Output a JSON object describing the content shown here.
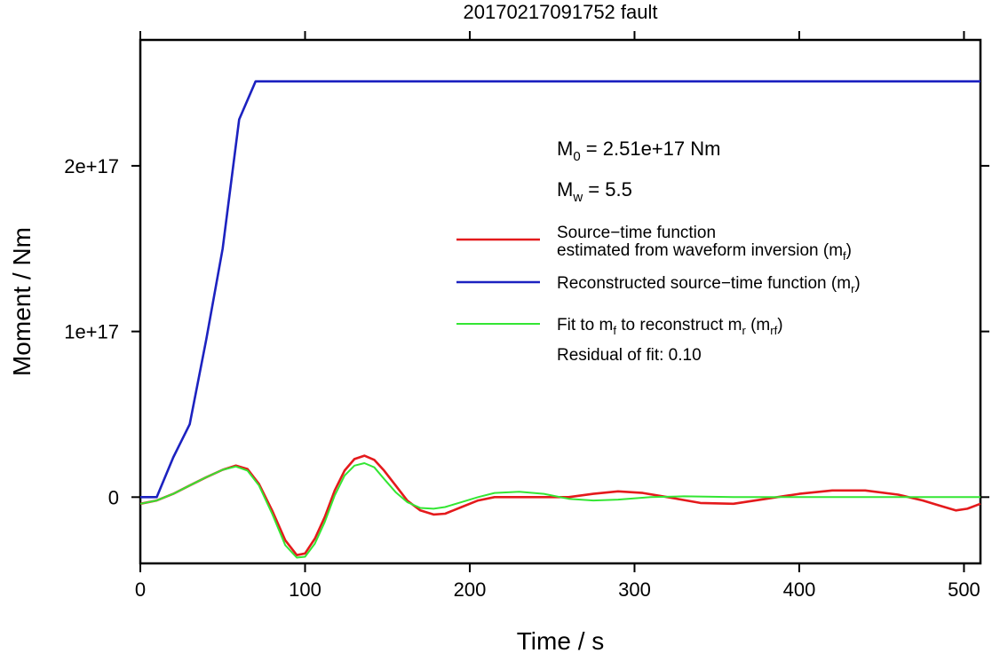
{
  "chart_data": {
    "type": "line",
    "title": "20170217091752 fault",
    "xlabel": "Time / s",
    "ylabel": "Moment / Nm",
    "xlim": [
      0,
      510
    ],
    "ylim": [
      -4e+16,
      2.76e+17
    ],
    "x_ticks": [
      0,
      100,
      200,
      300,
      400,
      500
    ],
    "x_tick_labels": [
      "0",
      "100",
      "200",
      "300",
      "400",
      "500"
    ],
    "y_ticks": [
      0,
      1e+17,
      2e+17
    ],
    "y_tick_labels": [
      "0",
      "1e+17",
      "2e+17"
    ],
    "grid": false,
    "legend_position": "right",
    "annotations": {
      "m0": {
        "pre": "M",
        "sub": "0",
        "post": " = 2.51e+17 Nm"
      },
      "mw": {
        "pre": "M",
        "sub": "w",
        "post": " = 5.5"
      },
      "residual": "Residual of fit: 0.10"
    },
    "legend": [
      {
        "color": "#e41a1c",
        "line1": "Source−time function",
        "line2": {
          "pre": "estimated from waveform inversion (m",
          "sub": "f",
          "post": ")"
        }
      },
      {
        "color": "#1c22c0",
        "line1": {
          "pre": "Reconstructed source−time function (m",
          "sub": "r",
          "post": ")"
        }
      },
      {
        "color": "#33e633",
        "line1": {
          "pre": "Fit to m",
          "sub1": "f",
          "mid": " to reconstruct m",
          "sub2": "r",
          "mid2": " (m",
          "sub3": "rf",
          "post": ")"
        }
      }
    ],
    "series": [
      {
        "name": "Source−time function estimated from waveform inversion (mf)",
        "color": "#e41a1c",
        "x": [
          0,
          10,
          20,
          30,
          40,
          50,
          58,
          65,
          72,
          80,
          88,
          95,
          100,
          106,
          112,
          118,
          124,
          130,
          136,
          142,
          148,
          155,
          162,
          170,
          178,
          185,
          195,
          205,
          215,
          230,
          245,
          260,
          275,
          290,
          305,
          320,
          340,
          360,
          380,
          400,
          420,
          440,
          460,
          475,
          485,
          495,
          502,
          510
        ],
        "y": [
          -4000000000000000.0,
          -2000000000000000.0,
          2000000000000000.0,
          7000000000000000.0,
          1.2e+16,
          1.65e+16,
          1.9e+16,
          1.7e+16,
          8000000000000000.0,
          -8000000000000000.0,
          -2.6e+16,
          -3.5e+16,
          -3.4e+16,
          -2.5e+16,
          -1.2e+16,
          4000000000000000.0,
          1.6e+16,
          2.3e+16,
          2.5e+16,
          2.25e+16,
          1.6e+16,
          7000000000000000.0,
          -2000000000000000.0,
          -8000000000000000.0,
          -1.05e+16,
          -1e+16,
          -6000000000000000.0,
          -2000000000000000.0,
          0,
          0,
          0,
          0,
          2000000000000000.0,
          3500000000000000.0,
          2500000000000000.0,
          0,
          -3500000000000000.0,
          -4000000000000000.0,
          -1000000000000000.0,
          2000000000000000.0,
          4000000000000000.0,
          4000000000000000.0,
          1500000000000000.0,
          -2000000000000000.0,
          -5000000000000000.0,
          -8000000000000000.0,
          -7000000000000000.0,
          -4000000000000000.0
        ]
      },
      {
        "name": "Reconstructed source−time function (mr)",
        "color": "#1c22c0",
        "x": [
          0,
          10,
          20,
          30,
          40,
          50,
          60,
          70,
          80,
          100,
          200,
          300,
          400,
          510
        ],
        "y": [
          0,
          0,
          2.4e+16,
          4.4e+16,
          9.5e+16,
          1.5e+17,
          2.28e+17,
          2.51e+17,
          2.51e+17,
          2.51e+17,
          2.51e+17,
          2.51e+17,
          2.51e+17,
          2.51e+17
        ]
      },
      {
        "name": "Fit to mf to reconstruct mr (mrf)",
        "color": "#33e633",
        "x": [
          0,
          10,
          20,
          30,
          40,
          50,
          58,
          65,
          72,
          80,
          88,
          95,
          100,
          106,
          112,
          118,
          124,
          130,
          136,
          142,
          148,
          155,
          162,
          170,
          178,
          185,
          195,
          205,
          215,
          230,
          245,
          260,
          275,
          290,
          310,
          330,
          360,
          400,
          450,
          510
        ],
        "y": [
          -4000000000000000.0,
          -2000000000000000.0,
          2000000000000000.0,
          7000000000000000.0,
          1.2e+16,
          1.65e+16,
          1.85e+16,
          1.6e+16,
          7000000000000000.0,
          -1e+16,
          -2.9e+16,
          -3.65e+16,
          -3.6e+16,
          -2.8e+16,
          -1.5e+16,
          1000000000000000.0,
          1.3e+16,
          1.9e+16,
          2.05e+16,
          1.8e+16,
          1.1e+16,
          3000000000000000.0,
          -3000000000000000.0,
          -6500000000000000.0,
          -7000000000000000.0,
          -6000000000000000.0,
          -3000000000000000.0,
          0,
          2500000000000000.0,
          3300000000000000.0,
          2000000000000000.0,
          -1000000000000000.0,
          -2000000000000000.0,
          -1500000000000000.0,
          0,
          500000000000000.0,
          0,
          0,
          0,
          0
        ]
      }
    ]
  }
}
